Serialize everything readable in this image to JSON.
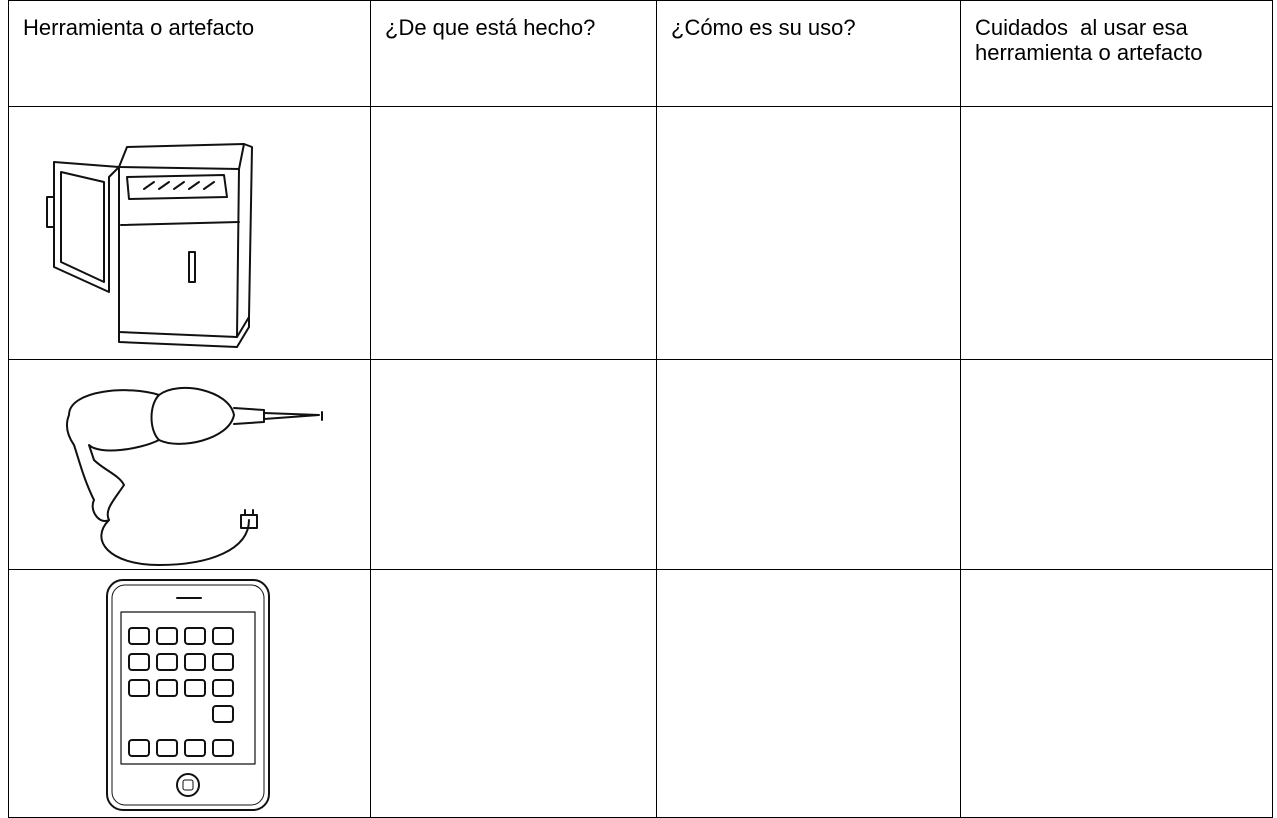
{
  "table": {
    "header": [
      "Herramienta o artefacto",
      "¿De que está hecho?",
      "¿Cómo es su uso?",
      "Cuidados  al usar esa herramienta o artefacto"
    ]
  }
}
